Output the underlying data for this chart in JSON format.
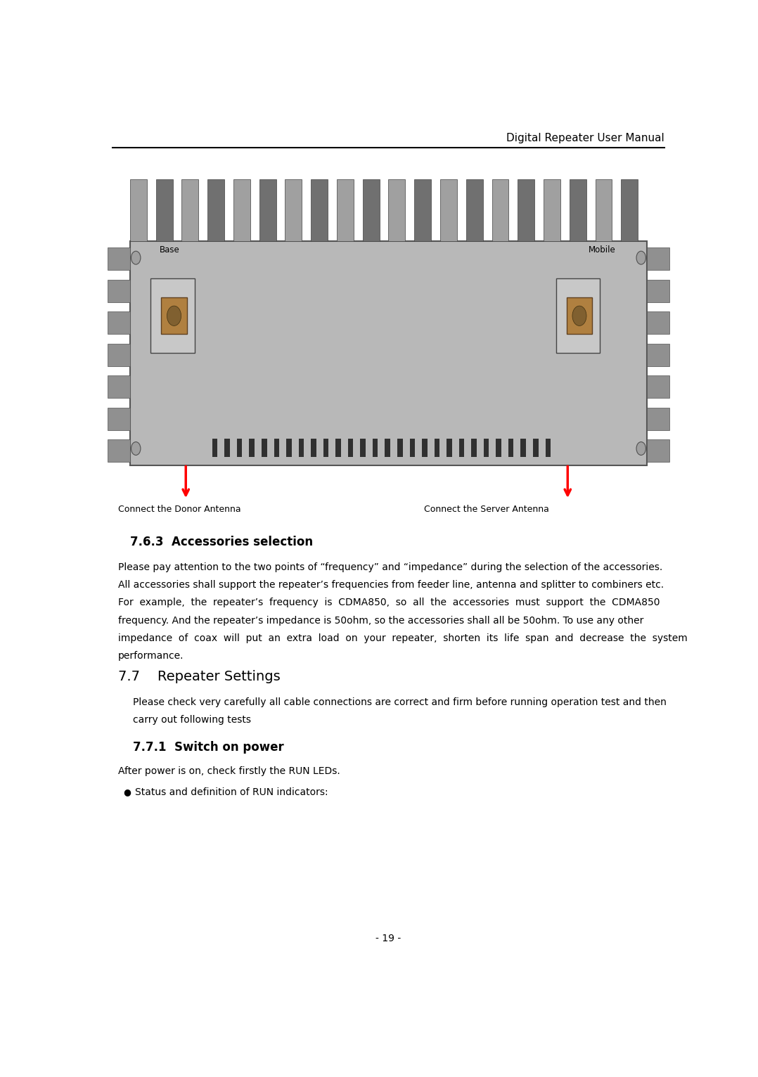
{
  "header_text": "Digital Repeater User Manual",
  "footer_page": "- 19 -",
  "label_left_text": "Connect the Donor Antenna",
  "label_right_text": "Connect the Server Antenna",
  "section_763_title": "7.6.3  Accessories selection",
  "para_763_lines": [
    "Please pay attention to the two points of “frequency” and “impedance” during the selection of the accessories.",
    "All accessories shall support the repeater’s frequencies from feeder line, antenna and splitter to combiners etc.",
    "For  example,  the  repeater’s  frequency  is  CDMA850,  so  all  the  accessories  must  support  the  CDMA850",
    "frequency. And the repeater’s impedance is 50ohm, so the accessories shall all be 50ohm. To use any other",
    "impedance  of  coax  will  put  an  extra  load  on  your  repeater,  shorten  its  life  span  and  decrease  the  system",
    "performance."
  ],
  "section_77_title": "7.7    Repeater Settings",
  "para_77_lines": [
    "Please check very carefully all cable connections are correct and firm before running operation test and then",
    "carry out following tests"
  ],
  "section_771_title": "7.7.1  Switch on power",
  "para_771_line1": "After power is on, check firstly the RUN LEDs.",
  "bullet_line": "Status and definition of RUN indicators:",
  "bg_color": "#ffffff",
  "text_color": "#000000",
  "header_fontsize": 11,
  "title_763_fontsize": 12,
  "body_fontsize": 10,
  "section_77_fontsize": 14,
  "section_771_fontsize": 12
}
